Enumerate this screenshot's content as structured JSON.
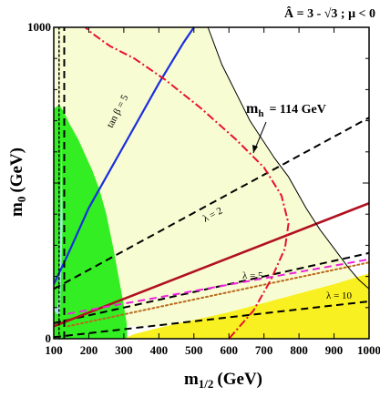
{
  "chart_data": {
    "type": "line",
    "title": "Â = 3 - √3 ; μ < 0",
    "xlabel": "m",
    "xlabel_sub": "1/2",
    "xlabel_unit": "(GeV)",
    "ylabel": "m",
    "ylabel_sub": "0",
    "ylabel_unit": "(GeV)",
    "xlim": [
      100,
      1000
    ],
    "ylim": [
      0,
      1000
    ],
    "x_ticks": [
      100,
      200,
      300,
      400,
      500,
      600,
      700,
      800,
      900,
      1000
    ],
    "y_ticks": [
      0,
      1000
    ],
    "annotations": {
      "mh": "m",
      "mh_sub": "h",
      "mh_value": "= 114 GeV",
      "tanb": "tan β = 5",
      "lam2": "λ = 2",
      "lam5": "λ = 5",
      "lam10": "λ = 10"
    },
    "colors": {
      "cream": "#f8fcd2",
      "green": "#33ee22",
      "yellow": "#f8f020",
      "cyan": "#a8e8e8",
      "blue": "#1a2ee0",
      "darkred": "#b01020",
      "red": "#e81030",
      "magenta": "#ee22dd",
      "brown": "#b86a1c"
    },
    "regions": [
      {
        "name": "cosmologically-allowed",
        "color": "cream",
        "points": [
          [
            100,
            1000
          ],
          [
            540,
            1000
          ],
          [
            580,
            880
          ],
          [
            620,
            790
          ],
          [
            660,
            700
          ],
          [
            730,
            580
          ],
          [
            770,
            520
          ],
          [
            820,
            420
          ],
          [
            860,
            350
          ],
          [
            900,
            290
          ],
          [
            940,
            230
          ],
          [
            970,
            190
          ],
          [
            1000,
            160
          ],
          [
            1000,
            40
          ],
          [
            120,
            40
          ]
        ]
      },
      {
        "name": "excluded-green",
        "color": "green",
        "points": [
          [
            100,
            740
          ],
          [
            116,
            750
          ],
          [
            128,
            730
          ],
          [
            145,
            690
          ],
          [
            170,
            640
          ],
          [
            190,
            590
          ],
          [
            210,
            540
          ],
          [
            230,
            480
          ],
          [
            250,
            400
          ],
          [
            270,
            290
          ],
          [
            285,
            200
          ],
          [
            298,
            120
          ],
          [
            308,
            50
          ],
          [
            310,
            0
          ],
          [
            100,
            0
          ]
        ]
      },
      {
        "name": "stau-lsp-yellow",
        "color": "yellow",
        "points": [
          [
            300,
            0
          ],
          [
            330,
            15
          ],
          [
            400,
            35
          ],
          [
            500,
            60
          ],
          [
            600,
            85
          ],
          [
            700,
            115
          ],
          [
            800,
            145
          ],
          [
            900,
            175
          ],
          [
            1000,
            210
          ],
          [
            1000,
            0
          ]
        ]
      },
      {
        "name": "cyan-strip",
        "color": "cyan",
        "points": [
          [
            100,
            95
          ],
          [
            108,
            80
          ],
          [
            118,
            78
          ],
          [
            125,
            370
          ],
          [
            122,
            650
          ],
          [
            116,
            160
          ],
          [
            110,
            100
          ]
        ]
      }
    ],
    "series": [
      {
        "name": "tan β = 5",
        "color": "blue",
        "dash": "solid",
        "width": 2.2,
        "points": [
          [
            100,
            175
          ],
          [
            140,
            270
          ],
          [
            200,
            420
          ],
          [
            300,
            620
          ],
          [
            400,
            820
          ],
          [
            470,
            950
          ],
          [
            500,
            1000
          ]
        ]
      },
      {
        "name": "λ = 2",
        "color": "black",
        "dash": "dash",
        "width": 2,
        "points": [
          [
            100,
            160
          ],
          [
            1000,
            710
          ]
        ]
      },
      {
        "name": "λ = 5",
        "color": "black",
        "dash": "dash",
        "width": 2,
        "points": [
          [
            100,
            50
          ],
          [
            1000,
            275
          ]
        ]
      },
      {
        "name": "λ = 10",
        "color": "black",
        "dash": "dash",
        "width": 2,
        "points": [
          [
            100,
            5
          ],
          [
            1000,
            120
          ]
        ]
      },
      {
        "name": "solid-darkred",
        "color": "darkred",
        "dash": "solid",
        "width": 2.6,
        "points": [
          [
            100,
            40
          ],
          [
            1000,
            435
          ]
        ]
      },
      {
        "name": "magenta-dashed",
        "color": "magenta",
        "dash": "dash",
        "width": 2,
        "points": [
          [
            140,
            80
          ],
          [
            1000,
            255
          ]
        ]
      },
      {
        "name": "brown-dotted",
        "color": "brown",
        "dash": "dot",
        "width": 2,
        "points": [
          [
            140,
            40
          ],
          [
            1000,
            245
          ]
        ]
      },
      {
        "name": "red-dashdot",
        "color": "red",
        "dash": "dashdot",
        "width": 2,
        "points": [
          [
            180,
            1010
          ],
          [
            210,
            980
          ],
          [
            260,
            940
          ],
          [
            330,
            900
          ],
          [
            420,
            830
          ],
          [
            520,
            740
          ],
          [
            620,
            640
          ],
          [
            700,
            550
          ],
          [
            750,
            460
          ],
          [
            770,
            370
          ],
          [
            760,
            290
          ],
          [
            720,
            190
          ],
          [
            670,
            90
          ],
          [
            600,
            0
          ]
        ]
      },
      {
        "name": "vertical-dashed",
        "color": "black",
        "dash": "dash",
        "width": 2,
        "points": [
          [
            130,
            0
          ],
          [
            130,
            1000
          ]
        ]
      },
      {
        "name": "vertical-dotted",
        "color": "black",
        "dash": "dot",
        "width": 1.5,
        "points": [
          [
            115,
            0
          ],
          [
            115,
            1000
          ]
        ]
      },
      {
        "name": "cream-boundary",
        "color": "black",
        "dash": "solid",
        "width": 1,
        "points": [
          [
            540,
            1000
          ],
          [
            580,
            880
          ],
          [
            620,
            790
          ],
          [
            660,
            700
          ],
          [
            730,
            580
          ],
          [
            770,
            520
          ],
          [
            820,
            420
          ],
          [
            860,
            350
          ],
          [
            900,
            290
          ],
          [
            940,
            230
          ],
          [
            970,
            190
          ],
          [
            1000,
            160
          ]
        ]
      }
    ]
  }
}
